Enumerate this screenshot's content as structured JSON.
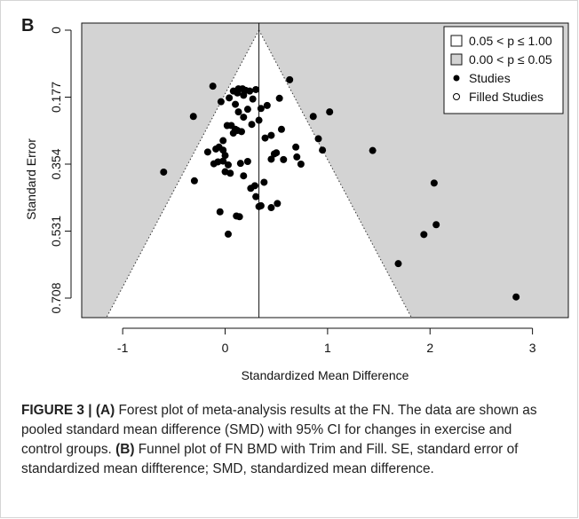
{
  "panel_label": "B",
  "caption": {
    "figure_label": "FIGURE 3 |",
    "part_a_label": "(A)",
    "part_a_text": " Forest plot of meta-analysis results at the FN. The data are shown as pooled standard mean difference (SMD) with 95% CI for changes in exercise and control groups. ",
    "part_b_label": "(B)",
    "part_b_text": " Funnel plot of FN BMD with Trim and Fill. SE, standard error of standardized mean diffterence; SMD, standardized mean difference."
  },
  "colors": {
    "background_region": "#d3d3d3",
    "funnel_fill": "#ffffff",
    "point": "#000000"
  },
  "chart_data": {
    "type": "scatter",
    "title": "",
    "xlabel": "Standardized Mean Difference",
    "ylabel": "Standard Error",
    "xlim": [
      -1.4,
      3.35
    ],
    "ylim": [
      0.708,
      0
    ],
    "xticks": [
      -1,
      0,
      1,
      2,
      3
    ],
    "xtick_labels": [
      "-1",
      "0",
      "1",
      "2",
      "3"
    ],
    "yticks": [
      0,
      0.177,
      0.354,
      0.531,
      0.708
    ],
    "ytick_labels": [
      "0",
      "0.177",
      "0.354",
      "0.531",
      "0.708"
    ],
    "pooled_estimate": 0.33,
    "funnel_z": 1.96,
    "legend": {
      "position": "top-right",
      "entries": [
        {
          "label": "0.05 < p ≤ 1.00",
          "marker": "square-white"
        },
        {
          "label": "0.00 < p ≤ 0.05",
          "marker": "square-gray"
        },
        {
          "label": "Studies",
          "marker": "circle-filled"
        },
        {
          "label": "Filled  Studies",
          "marker": "circle-open"
        }
      ]
    },
    "series": [
      {
        "name": "Studies",
        "points": [
          [
            -0.12,
            0.148
          ],
          [
            0.63,
            0.131
          ],
          [
            0.53,
            0.18
          ],
          [
            0.08,
            0.161
          ],
          [
            0.13,
            0.155
          ],
          [
            0.17,
            0.155
          ],
          [
            0.2,
            0.159
          ],
          [
            0.24,
            0.161
          ],
          [
            0.3,
            0.157
          ],
          [
            0.12,
            0.166
          ],
          [
            0.04,
            0.179
          ],
          [
            -0.04,
            0.189
          ],
          [
            0.18,
            0.172
          ],
          [
            0.27,
            0.182
          ],
          [
            0.1,
            0.196
          ],
          [
            0.22,
            0.209
          ],
          [
            0.35,
            0.207
          ],
          [
            0.41,
            0.199
          ],
          [
            0.13,
            0.216
          ],
          [
            0.18,
            0.23
          ],
          [
            -0.31,
            0.228
          ],
          [
            0.86,
            0.228
          ],
          [
            1.02,
            0.216
          ],
          [
            0.33,
            0.238
          ],
          [
            0.26,
            0.249
          ],
          [
            0.02,
            0.252
          ],
          [
            0.06,
            0.252
          ],
          [
            0.1,
            0.262
          ],
          [
            0.12,
            0.265
          ],
          [
            0.16,
            0.268
          ],
          [
            0.08,
            0.272
          ],
          [
            0.55,
            0.262
          ],
          [
            0.45,
            0.278
          ],
          [
            0.91,
            0.287
          ],
          [
            0.95,
            0.317
          ],
          [
            1.44,
            0.318
          ],
          [
            0.69,
            0.309
          ],
          [
            0.7,
            0.335
          ],
          [
            0.74,
            0.354
          ],
          [
            0.5,
            0.324
          ],
          [
            0.48,
            0.327
          ],
          [
            0.39,
            0.285
          ],
          [
            -0.02,
            0.292
          ],
          [
            -0.06,
            0.309
          ],
          [
            -0.09,
            0.314
          ],
          [
            -0.17,
            0.322
          ],
          [
            -0.02,
            0.317
          ],
          [
            0.0,
            0.331
          ],
          [
            0.03,
            0.356
          ],
          [
            -0.02,
            0.346
          ],
          [
            -0.07,
            0.348
          ],
          [
            -0.11,
            0.353
          ],
          [
            0.15,
            0.352
          ],
          [
            0.22,
            0.347
          ],
          [
            0.45,
            0.341
          ],
          [
            0.57,
            0.342
          ],
          [
            -0.6,
            0.375
          ],
          [
            0.0,
            0.374
          ],
          [
            0.05,
            0.378
          ],
          [
            0.18,
            0.385
          ],
          [
            -0.3,
            0.398
          ],
          [
            0.38,
            0.402
          ],
          [
            0.25,
            0.418
          ],
          [
            0.29,
            0.411
          ],
          [
            2.04,
            0.404
          ],
          [
            0.3,
            0.44
          ],
          [
            0.33,
            0.466
          ],
          [
            0.35,
            0.464
          ],
          [
            0.45,
            0.469
          ],
          [
            0.51,
            0.458
          ],
          [
            -0.05,
            0.48
          ],
          [
            0.11,
            0.491
          ],
          [
            0.14,
            0.493
          ],
          [
            2.06,
            0.514
          ],
          [
            1.94,
            0.54
          ],
          [
            0.03,
            0.539
          ],
          [
            1.69,
            0.617
          ],
          [
            2.84,
            0.705
          ]
        ]
      }
    ]
  }
}
